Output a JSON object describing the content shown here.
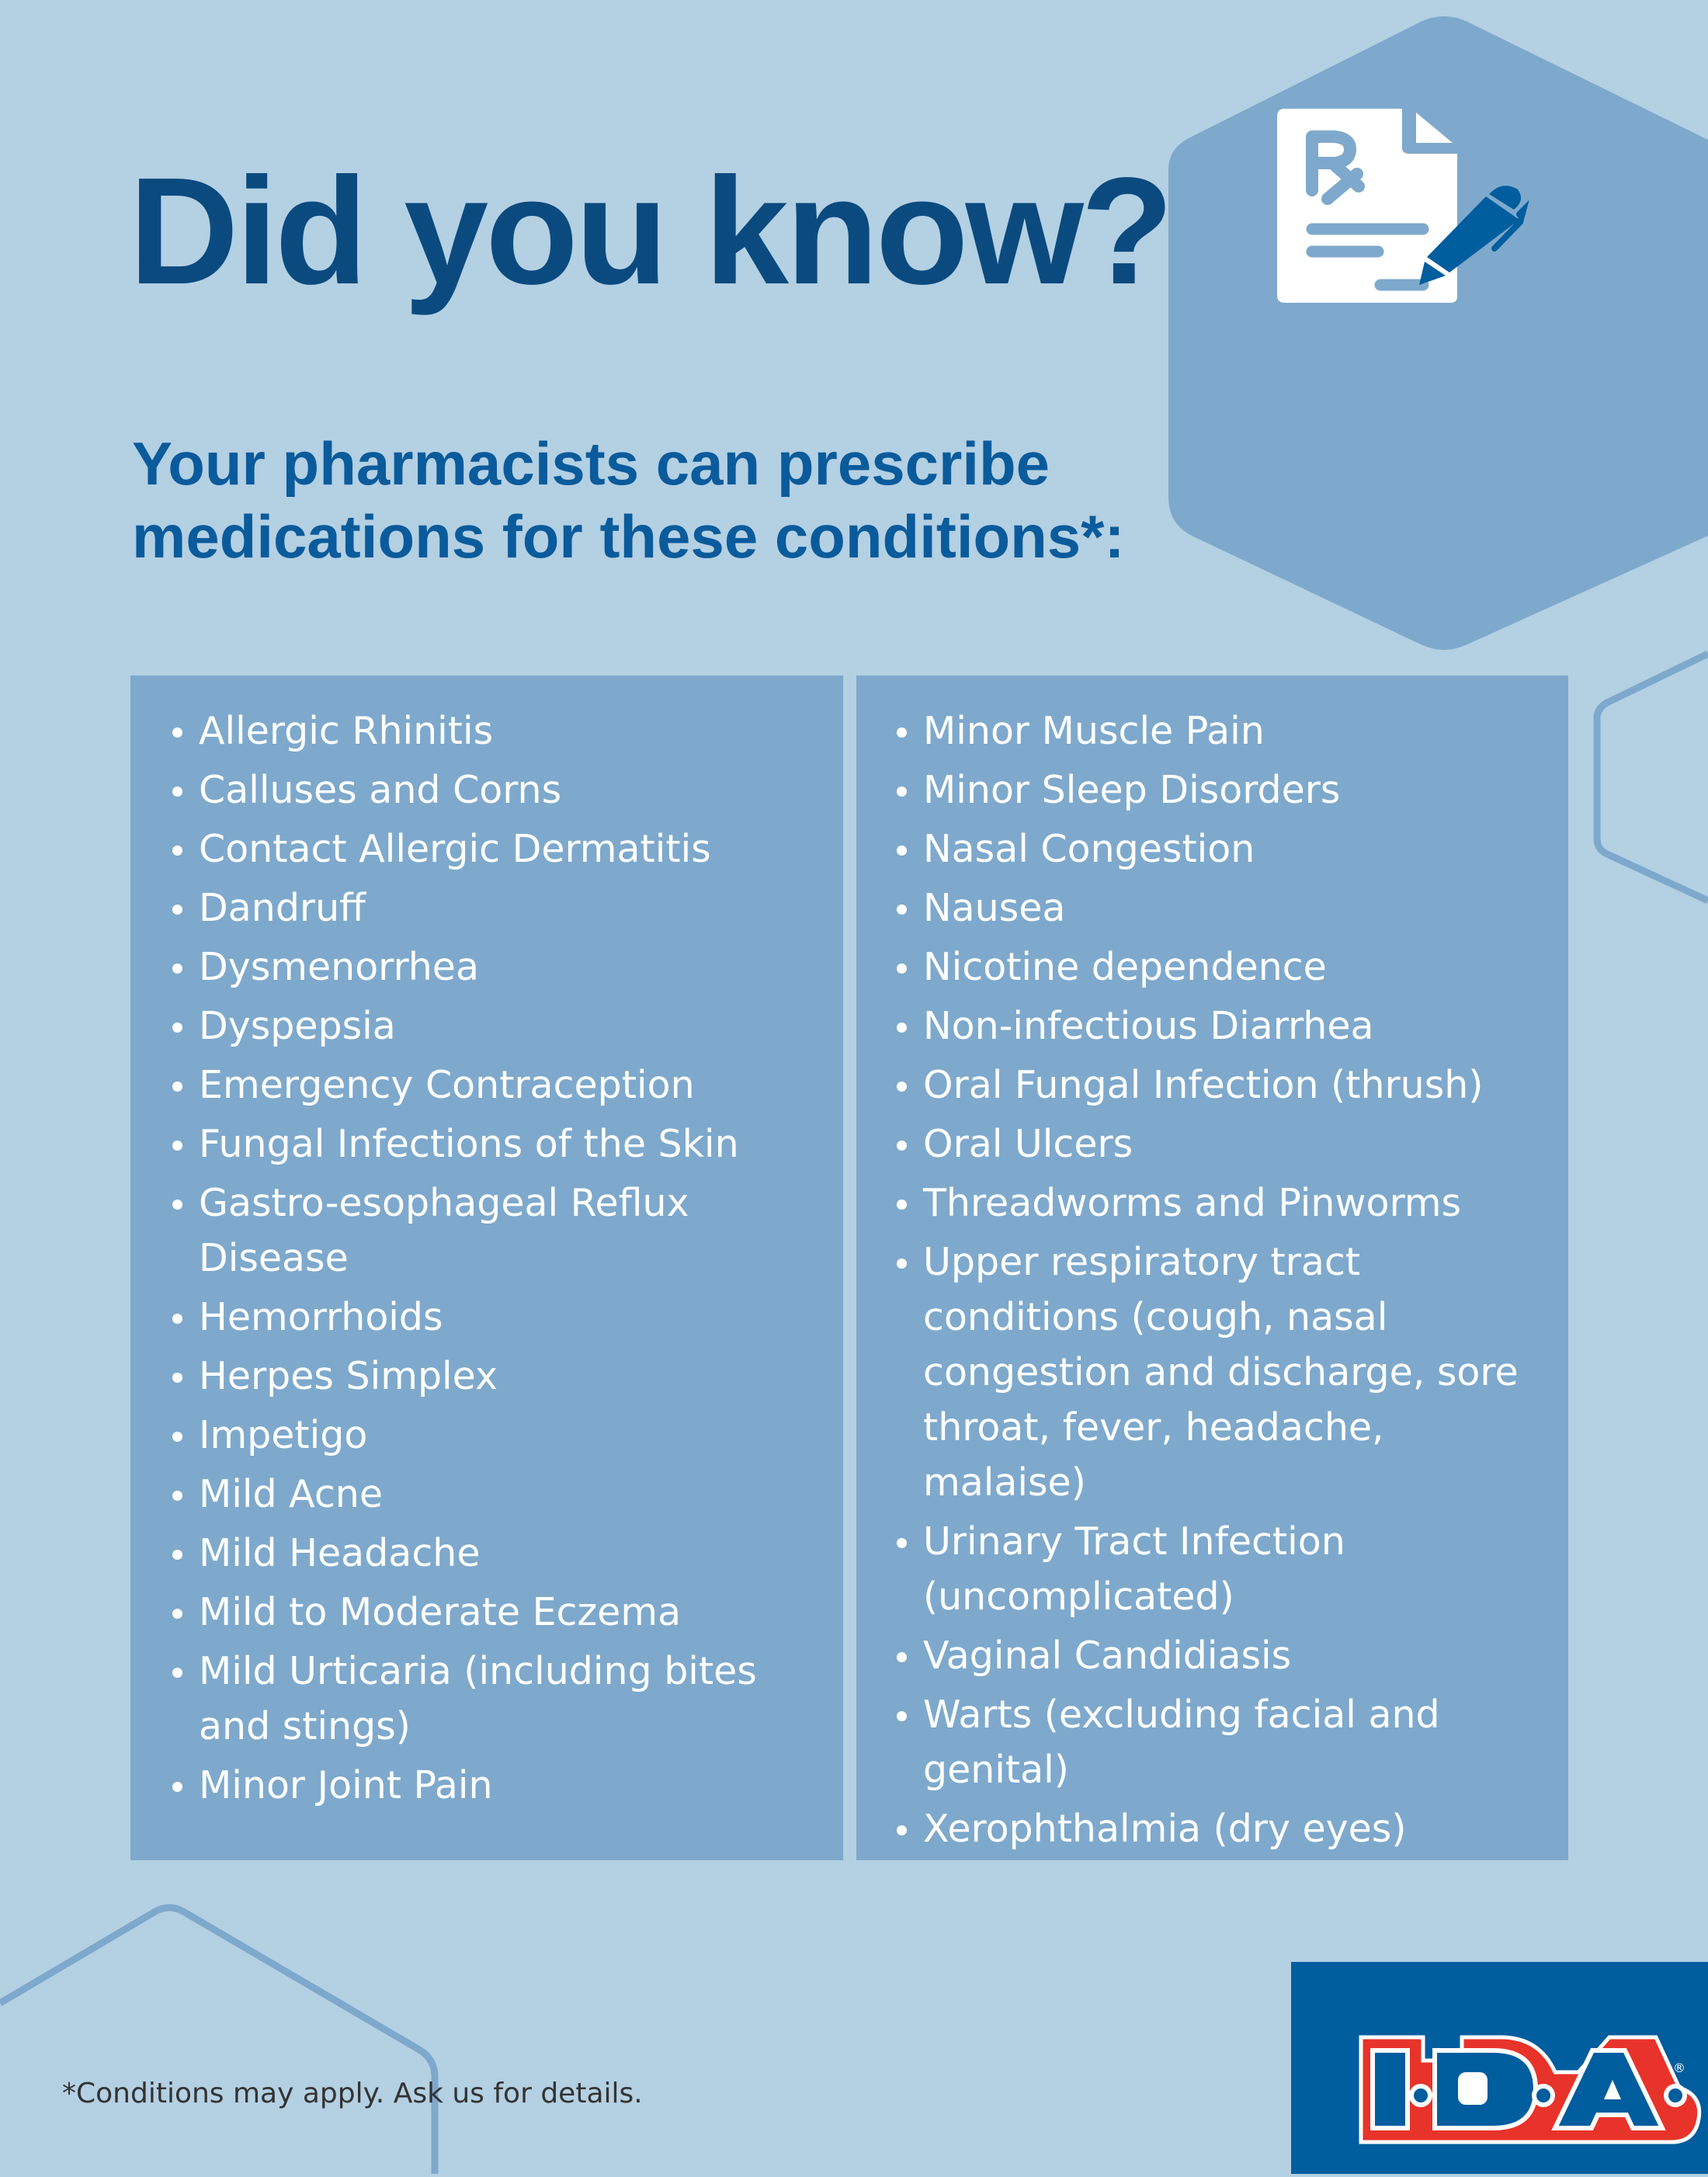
{
  "header": {
    "title": "Did you know?",
    "subtitle_line1": "Your pharmacists can prescribe",
    "subtitle_line2": "medications for these conditions*:"
  },
  "icons": {
    "hero": "prescription-document-pen-icon"
  },
  "conditions_left": [
    "Allergic Rhinitis",
    "Calluses and Corns",
    "Contact Allergic Dermatitis",
    "Dandruff",
    "Dysmenorrhea",
    "Dyspepsia",
    "Emergency Contraception",
    "Fungal Infections of the Skin",
    "Gastro-esophageal Reflux Disease",
    "Hemorrhoids",
    "Herpes Simplex",
    "Impetigo",
    "Mild Acne",
    "Mild Headache",
    "Mild to Moderate Eczema",
    "Mild Urticaria (including bites and stings)",
    "Minor Joint Pain"
  ],
  "conditions_right": [
    "Minor Muscle Pain",
    "Minor Sleep Disorders",
    "Nasal Congestion",
    "Nausea",
    "Nicotine dependence",
    "Non-infectious Diarrhea",
    "Oral Fungal Infection (thrush)",
    "Oral Ulcers",
    "Threadworms and Pinworms",
    "Upper respiratory tract conditions (cough, nasal congestion and discharge, sore throat, fever, headache, malaise)",
    "Urinary Tract Infection (uncomplicated)",
    "Vaginal Candidiasis",
    "Warts (excluding facial and genital)",
    "Xerophthalmia (dry eyes)"
  ],
  "footnote": "*Conditions may apply. Ask us for details.",
  "logo": {
    "text": "I·D·A",
    "mark": "®"
  },
  "colors": {
    "background": "#b4d0e3",
    "panel": "#7ea9cc",
    "title": "#0b4a7f",
    "brand_blue": "#005d9e",
    "brand_red": "#e8332a"
  }
}
